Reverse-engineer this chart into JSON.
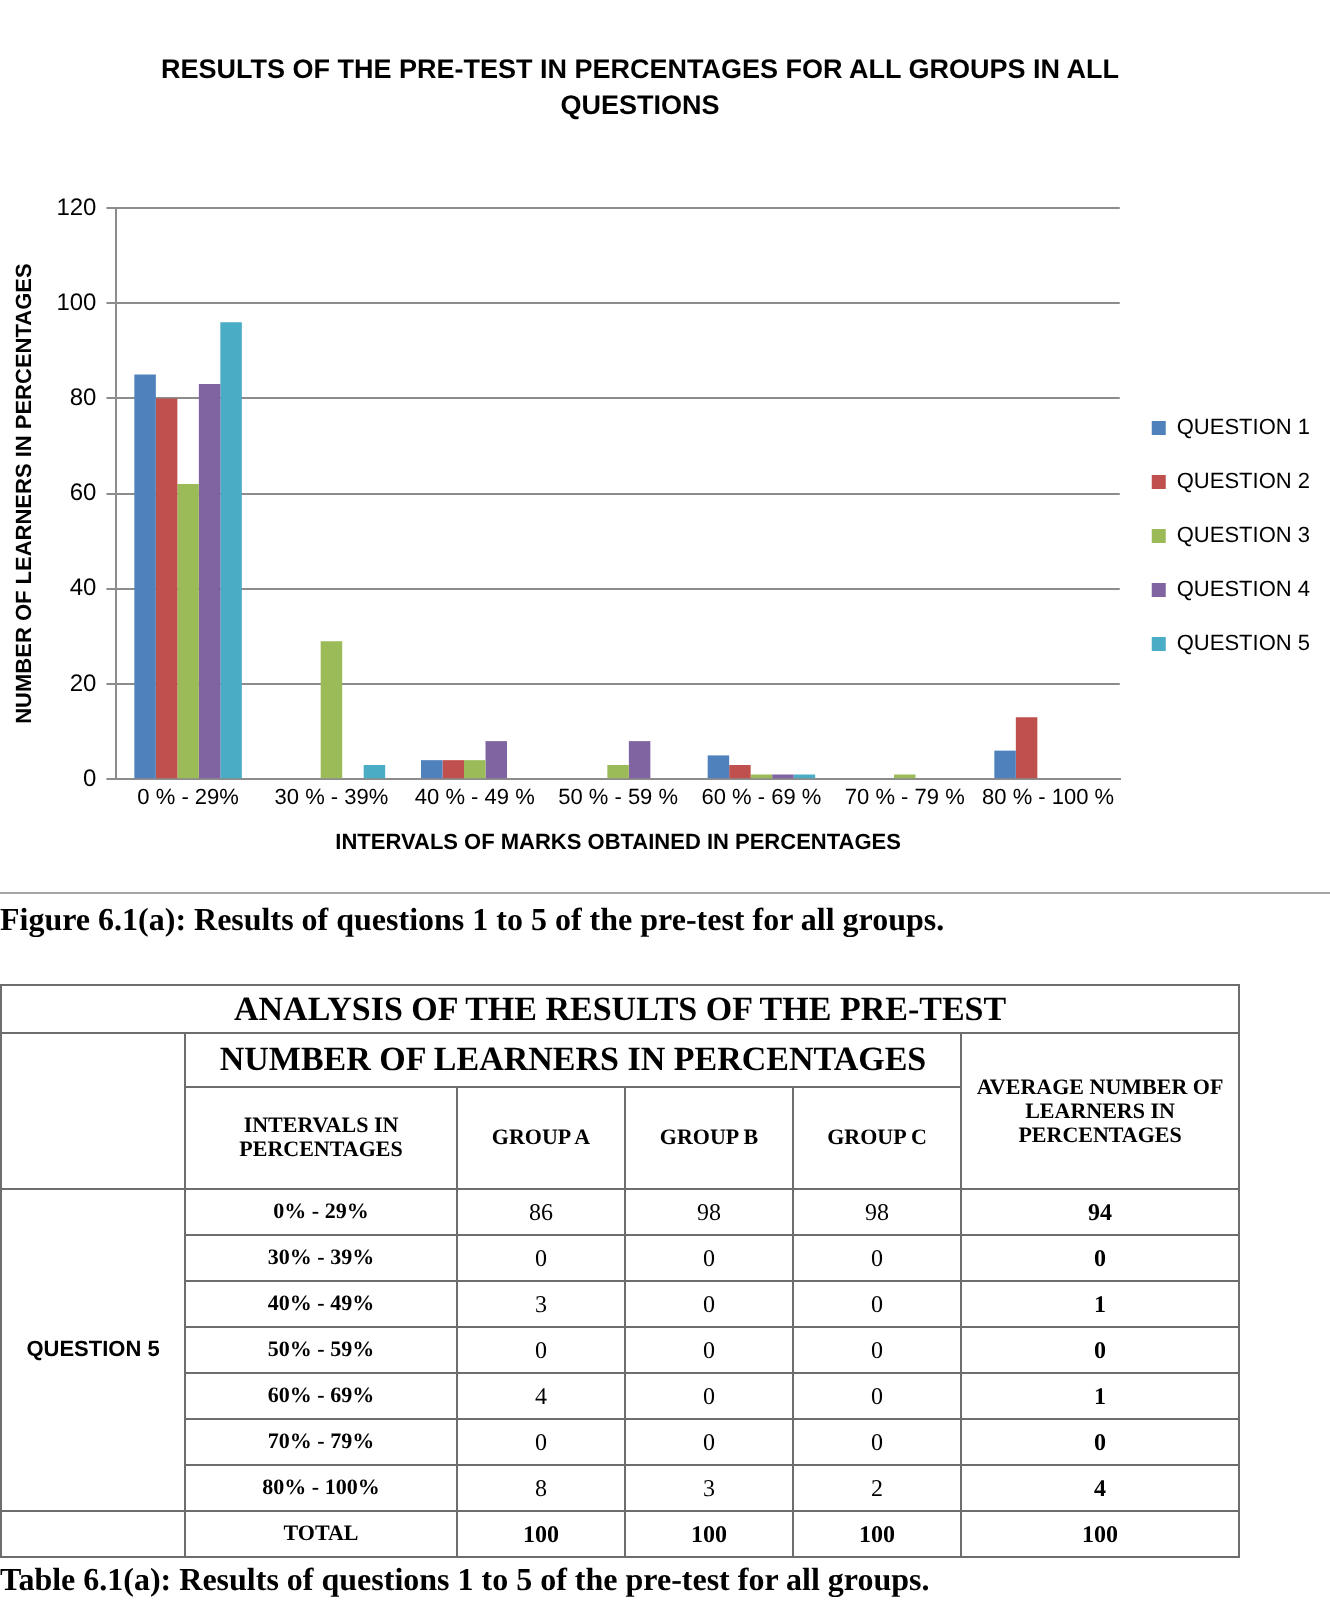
{
  "chart_data": [
    {
      "type": "bar",
      "title": "RESULTS OF THE PRE-TEST IN PERCENTAGES FOR ALL GROUPS IN ALL QUESTIONS",
      "xlabel": "INTERVALS OF MARKS OBTAINED IN PERCENTAGES",
      "ylabel": "NUMBER OF LEARNERS IN PERCENTAGES",
      "categories": [
        "0 % - 29%",
        "30 % - 39%",
        "40 % - 49 %",
        "50 % - 59 %",
        "60 % - 69 %",
        "70 % - 79 %",
        "80 % - 100 %"
      ],
      "series": [
        {
          "name": "QUESTION 1",
          "color": "#4f81bd",
          "values": [
            85,
            0,
            4,
            0,
            5,
            0,
            6
          ]
        },
        {
          "name": "QUESTION 2",
          "color": "#c0504d",
          "values": [
            80,
            0,
            4,
            0,
            3,
            0,
            13
          ]
        },
        {
          "name": "QUESTION 3",
          "color": "#9bbb59",
          "values": [
            62,
            29,
            4,
            3,
            1,
            1,
            0
          ]
        },
        {
          "name": "QUESTION 4",
          "color": "#8064a2",
          "values": [
            83,
            0,
            8,
            8,
            1,
            0,
            0
          ]
        },
        {
          "name": "QUESTION 5",
          "color": "#4bacc6",
          "values": [
            96,
            3,
            0,
            0,
            1,
            0,
            0
          ]
        }
      ],
      "ylim": [
        0,
        120
      ],
      "yticks": [
        0,
        20,
        40,
        60,
        80,
        100,
        120
      ],
      "grid": "y",
      "legend": "right",
      "annotations": [
        "Figure 6.1(a): Results of questions 1 to 5 of the pre-test for all groups."
      ]
    },
    {
      "type": "heatmap",
      "title": "ANALYSIS OF THE RESULTS OF THE PRE-TEST",
      "subtitle": "NUMBER OF LEARNERS IN PERCENTAGES",
      "ylabel": "QUESTION 5",
      "categories": [
        "GROUP A",
        "GROUP B",
        "GROUP C",
        "AVERAGE NUMBER OF LEARNERS IN PERCENTAGES"
      ],
      "y_categories": [
        "0% - 29%",
        "30% - 39%",
        "40% - 49%",
        "50% - 59%",
        "60% - 69%",
        "70% - 79%",
        "80% - 100%",
        "TOTAL"
      ],
      "cells": [
        [
          86,
          98,
          98,
          94
        ],
        [
          0,
          0,
          0,
          0
        ],
        [
          3,
          0,
          0,
          1
        ],
        [
          0,
          0,
          0,
          0
        ],
        [
          4,
          0,
          0,
          1
        ],
        [
          0,
          0,
          0,
          0
        ],
        [
          8,
          3,
          2,
          4
        ],
        [
          100,
          100,
          100,
          100
        ]
      ],
      "data_labels": true,
      "annotations": [
        "INTERVALS IN PERCENTAGES",
        "Table 6.1(a): Results of questions 1 to 5 of the pre-test for all groups."
      ]
    }
  ]
}
